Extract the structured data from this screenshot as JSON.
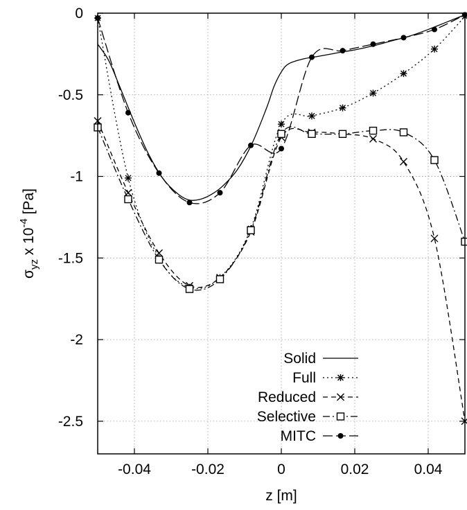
{
  "chart_data": {
    "type": "line",
    "title": "",
    "xlabel": "z [m]",
    "ylabel": {
      "main": "σ",
      "sub": "yz",
      "mid": " x 10",
      "sup": "-4",
      "unit": " [Pa]"
    },
    "xlim": [
      -0.05,
      0.05
    ],
    "ylim": [
      -2.7,
      0
    ],
    "xticks": [
      -0.04,
      -0.02,
      0,
      0.02,
      0.04
    ],
    "xtick_labels": [
      "-0.04",
      "-0.02",
      "0",
      "0.02",
      "0.04"
    ],
    "yticks": [
      0,
      -0.5,
      -1,
      -1.5,
      -2,
      -2.5
    ],
    "ytick_labels": [
      "0",
      "-0.5",
      "-1",
      "-1.5",
      "-2",
      "-2.5"
    ],
    "grid": true,
    "legend_position": "bottom-right",
    "series": [
      {
        "name": "Solid",
        "marker": "none",
        "dash": "solid",
        "x": [
          -0.05,
          -0.047,
          -0.044,
          -0.04,
          -0.036,
          -0.032,
          -0.028,
          -0.025,
          -0.022,
          -0.019,
          -0.016,
          -0.012,
          -0.008,
          -0.004,
          -0.002,
          0,
          0.002,
          0.006,
          0.01,
          0.016,
          0.02,
          0.025,
          0.03,
          0.035,
          0.04,
          0.045,
          0.05
        ],
        "y": [
          -0.19,
          -0.29,
          -0.45,
          -0.67,
          -0.87,
          -1.02,
          -1.11,
          -1.145,
          -1.14,
          -1.11,
          -1.06,
          -0.96,
          -0.8,
          -0.58,
          -0.45,
          -0.36,
          -0.31,
          -0.28,
          -0.265,
          -0.24,
          -0.225,
          -0.2,
          -0.17,
          -0.14,
          -0.1,
          -0.055,
          -0.01
        ]
      },
      {
        "name": "Full",
        "marker": "asterisk",
        "dash": "dotted",
        "x": [
          -0.05,
          -0.0417,
          -0.0333,
          -0.025,
          -0.0167,
          -0.0083,
          0,
          0.0083,
          0.0167,
          0.025,
          0.0333,
          0.0417,
          0.05
        ],
        "y": [
          -0.03,
          -1.01,
          -1.5,
          -1.68,
          -1.62,
          -1.32,
          -0.68,
          -0.63,
          -0.58,
          -0.49,
          -0.37,
          -0.22,
          -0.02
        ]
      },
      {
        "name": "Reduced",
        "marker": "x",
        "dash": "dashed",
        "x": [
          -0.05,
          -0.0417,
          -0.0333,
          -0.025,
          -0.0167,
          -0.0083,
          0,
          0.0083,
          0.0167,
          0.025,
          0.0333,
          0.0417,
          0.05
        ],
        "y": [
          -0.66,
          -1.1,
          -1.47,
          -1.67,
          -1.62,
          -1.34,
          -0.76,
          -0.73,
          -0.74,
          -0.77,
          -0.91,
          -1.38,
          -2.5
        ]
      },
      {
        "name": "Selective",
        "marker": "square",
        "dash": "dashdot",
        "x": [
          -0.05,
          -0.0417,
          -0.0333,
          -0.025,
          -0.0167,
          -0.0083,
          0,
          0.0083,
          0.0167,
          0.025,
          0.0333,
          0.0417,
          0.05
        ],
        "y": [
          -0.7,
          -1.14,
          -1.51,
          -1.69,
          -1.63,
          -1.33,
          -0.74,
          -0.74,
          -0.74,
          -0.72,
          -0.73,
          -0.9,
          -1.4
        ]
      },
      {
        "name": "MITC",
        "marker": "circle",
        "dash": "longdash",
        "x": [
          -0.05,
          -0.0417,
          -0.0333,
          -0.025,
          -0.0167,
          -0.0083,
          0,
          0.0083,
          0.0167,
          0.025,
          0.0333,
          0.0417,
          0.05
        ],
        "y": [
          -0.03,
          -0.61,
          -0.98,
          -1.16,
          -1.1,
          -0.81,
          -0.83,
          -0.27,
          -0.23,
          -0.19,
          -0.15,
          -0.1,
          -0.01
        ]
      }
    ]
  }
}
